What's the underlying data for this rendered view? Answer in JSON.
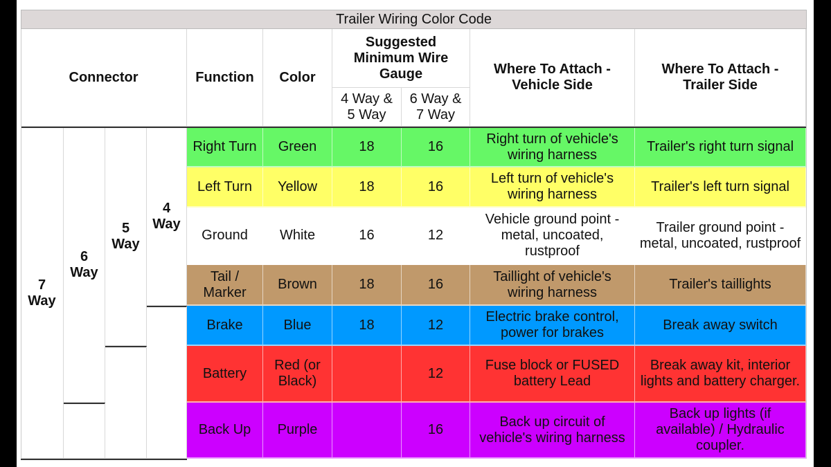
{
  "title": "Trailer Wiring Color Code",
  "headers": {
    "connector": "Connector",
    "function": "Function",
    "color": "Color",
    "gauge": "Suggested Minimum Wire Gauge",
    "gauge_sub_1": "4 Way & 5 Way",
    "gauge_sub_2": "6 Way & 7 Way",
    "vehicle": "Where To Attach - Vehicle Side",
    "trailer": "Where To Attach - Trailer Side"
  },
  "connectors": [
    {
      "label": "7 Way",
      "rows": 7
    },
    {
      "label": "6 Way",
      "rows": 6
    },
    {
      "label": "5 Way",
      "rows": 5
    },
    {
      "label": "4 Way",
      "rows": 4
    }
  ],
  "rows": [
    {
      "function": "Right Turn",
      "color": "Green",
      "g45": "18",
      "g67": "16",
      "vehicle": "Right turn of vehicle's wiring harness",
      "trailer": "Trailer's right turn signal",
      "bg": "#66f766"
    },
    {
      "function": "Left Turn",
      "color": "Yellow",
      "g45": "18",
      "g67": "16",
      "vehicle": "Left turn of vehicle's wiring harness",
      "trailer": "Trailer's left turn signal",
      "bg": "#ffff66"
    },
    {
      "function": "Ground",
      "color": "White",
      "g45": "16",
      "g67": "12",
      "vehicle": "Vehicle ground point - metal, uncoated, rustproof",
      "trailer": "Trailer ground point - metal, uncoated, rustproof",
      "bg": "#ffffff"
    },
    {
      "function": "Tail / Marker",
      "color": "Brown",
      "g45": "18",
      "g67": "16",
      "vehicle": "Taillight of vehicle's wiring harness",
      "trailer": "Trailer's taillights",
      "bg": "#c0996b"
    },
    {
      "function": "Brake",
      "color": "Blue",
      "g45": "18",
      "g67": "12",
      "vehicle": "Electric brake control, power for brakes",
      "trailer": "Break away switch",
      "bg": "#0099ff"
    },
    {
      "function": "Battery",
      "color": "Red (or Black)",
      "g45": "",
      "g67": "12",
      "vehicle": "Fuse block or FUSED battery Lead",
      "trailer": "Break away kit, interior lights and battery charger.",
      "bg": "#ff3333"
    },
    {
      "function": "Back Up",
      "color": "Purple",
      "g45": "",
      "g67": "16",
      "vehicle": "Back up circuit of vehicle's wiring harness",
      "trailer": "Back up lights (if available) / Hydraulic coupler.",
      "bg": "#cc00ff"
    }
  ]
}
